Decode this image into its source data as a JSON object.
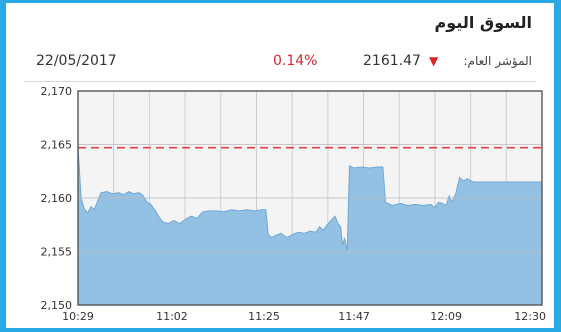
{
  "header": {
    "title": "السوق اليوم",
    "index_label": "المؤشر العام:",
    "index_value": "2161.47",
    "change_percent": "0.14%",
    "date": "22/05/2017"
  },
  "colors": {
    "frame": "#29a8e6",
    "area_fill": "#93c1e4",
    "area_line": "#6fa7d6",
    "reference_line": "#e04040",
    "negative": "#d9262c"
  },
  "icons": {
    "trend": "down-triangle-icon"
  },
  "chart_data": {
    "type": "area",
    "title": "",
    "xlabel": "",
    "ylabel": "",
    "ylim": [
      2150,
      2170
    ],
    "y_ticks": [
      2150,
      2155,
      2160,
      2165,
      2170
    ],
    "y_tick_labels": [
      "2,150",
      "2,155",
      "2,160",
      "2,165",
      "2,170"
    ],
    "x_tick_labels": [
      "10:29",
      "11:02",
      "11:25",
      "11:47",
      "12:09",
      "12:30"
    ],
    "x_range": [
      0,
      121
    ],
    "x_tick_positions": [
      0,
      24.5,
      48.5,
      72,
      96,
      121
    ],
    "reference_value": 2164.7,
    "grid": true,
    "series": [
      {
        "points": [
          [
            0,
            2164.8
          ],
          [
            0.8,
            2160.0
          ],
          [
            1.6,
            2159.0
          ],
          [
            2.5,
            2158.6
          ],
          [
            3.4,
            2159.2
          ],
          [
            4.2,
            2158.9
          ],
          [
            5.0,
            2159.6
          ],
          [
            6.0,
            2160.5
          ],
          [
            7.5,
            2160.6
          ],
          [
            9.0,
            2160.4
          ],
          [
            10.5,
            2160.5
          ],
          [
            12.0,
            2160.3
          ],
          [
            13.2,
            2160.6
          ],
          [
            14.5,
            2160.4
          ],
          [
            16.0,
            2160.5
          ],
          [
            17.0,
            2160.2
          ],
          [
            18.0,
            2159.6
          ],
          [
            19.0,
            2159.4
          ],
          [
            20.0,
            2158.9
          ],
          [
            21.0,
            2158.3
          ],
          [
            22.0,
            2157.8
          ],
          [
            23.5,
            2157.6
          ],
          [
            25.0,
            2157.9
          ],
          [
            26.5,
            2157.6
          ],
          [
            28.0,
            2158.0
          ],
          [
            29.5,
            2158.3
          ],
          [
            31.0,
            2158.1
          ],
          [
            32.5,
            2158.7
          ],
          [
            34.0,
            2158.8
          ],
          [
            36.0,
            2158.8
          ],
          [
            38.0,
            2158.7
          ],
          [
            40.0,
            2158.9
          ],
          [
            42.0,
            2158.8
          ],
          [
            44.0,
            2158.9
          ],
          [
            46.0,
            2158.8
          ],
          [
            48.0,
            2158.9
          ],
          [
            49.0,
            2158.9
          ],
          [
            49.6,
            2156.6
          ],
          [
            50.5,
            2156.3
          ],
          [
            51.5,
            2156.5
          ],
          [
            53.0,
            2156.7
          ],
          [
            54.5,
            2156.3
          ],
          [
            56.0,
            2156.6
          ],
          [
            57.5,
            2156.8
          ],
          [
            59.0,
            2156.7
          ],
          [
            60.5,
            2156.9
          ],
          [
            62.0,
            2156.8
          ],
          [
            63.0,
            2157.3
          ],
          [
            64.0,
            2157.0
          ],
          [
            65.0,
            2157.5
          ],
          [
            66.0,
            2157.9
          ],
          [
            67.0,
            2158.3
          ],
          [
            67.8,
            2157.6
          ],
          [
            68.5,
            2157.3
          ],
          [
            69.0,
            2155.6
          ],
          [
            69.5,
            2156.2
          ],
          [
            70.2,
            2155.1
          ],
          [
            70.8,
            2163.0
          ],
          [
            72.0,
            2162.8
          ],
          [
            74.0,
            2162.9
          ],
          [
            76.0,
            2162.8
          ],
          [
            78.0,
            2162.9
          ],
          [
            79.5,
            2162.9
          ],
          [
            80.2,
            2159.6
          ],
          [
            82.0,
            2159.3
          ],
          [
            84.0,
            2159.5
          ],
          [
            86.0,
            2159.3
          ],
          [
            88.0,
            2159.4
          ],
          [
            90.0,
            2159.3
          ],
          [
            92.0,
            2159.4
          ],
          [
            93.0,
            2159.1
          ],
          [
            94.0,
            2159.6
          ],
          [
            95.0,
            2159.5
          ],
          [
            96.0,
            2159.3
          ],
          [
            96.8,
            2160.2
          ],
          [
            97.5,
            2159.6
          ],
          [
            98.5,
            2160.4
          ],
          [
            99.5,
            2161.9
          ],
          [
            100.5,
            2161.6
          ],
          [
            101.5,
            2161.8
          ],
          [
            103.0,
            2161.5
          ],
          [
            121.0,
            2161.5
          ]
        ]
      }
    ]
  }
}
